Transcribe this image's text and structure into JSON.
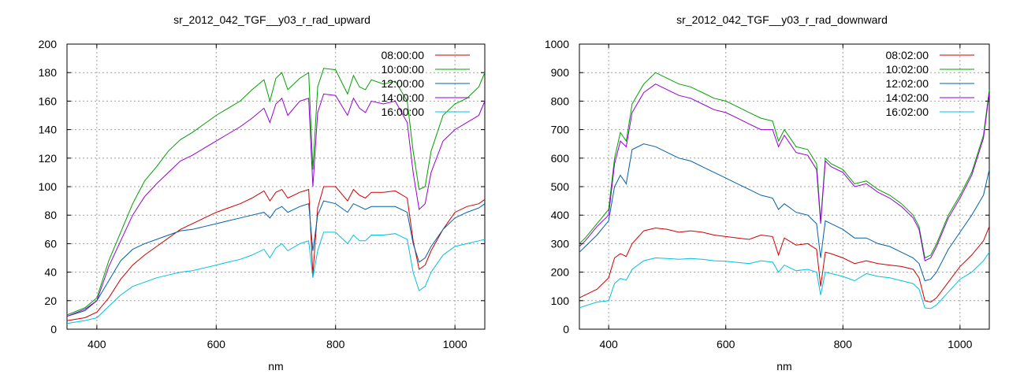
{
  "chart_data": [
    {
      "type": "line",
      "title": "sr_2012_042_TGF__y03_r_rad_upward",
      "xlabel": "nm",
      "ylabel": "",
      "xlim": [
        350,
        1050
      ],
      "ylim": [
        0,
        200
      ],
      "xticks": [
        400,
        600,
        800,
        1000
      ],
      "yticks": [
        0,
        20,
        40,
        60,
        80,
        100,
        120,
        140,
        160,
        180,
        200
      ],
      "grid": true,
      "legend_position": "top-right",
      "x": [
        350,
        380,
        400,
        420,
        440,
        460,
        480,
        500,
        520,
        540,
        560,
        580,
        600,
        620,
        640,
        660,
        680,
        690,
        700,
        710,
        720,
        740,
        755,
        762,
        770,
        780,
        800,
        820,
        830,
        840,
        850,
        860,
        880,
        900,
        920,
        930,
        940,
        950,
        960,
        980,
        1000,
        1020,
        1040,
        1050
      ],
      "series": [
        {
          "name": "08:00:00",
          "color": "#cc0000",
          "values": [
            6,
            8,
            12,
            22,
            35,
            45,
            52,
            58,
            64,
            70,
            74,
            78,
            82,
            85,
            88,
            92,
            97,
            90,
            96,
            98,
            92,
            96,
            98,
            38,
            85,
            100,
            100,
            90,
            98,
            94,
            92,
            96,
            96,
            97,
            92,
            62,
            42,
            45,
            55,
            70,
            82,
            86,
            88,
            91
          ]
        },
        {
          "name": "10:00:00",
          "color": "#00a000",
          "values": [
            10,
            15,
            22,
            48,
            68,
            88,
            104,
            114,
            125,
            133,
            138,
            144,
            150,
            155,
            160,
            168,
            175,
            160,
            176,
            180,
            168,
            176,
            180,
            112,
            170,
            183,
            182,
            165,
            178,
            170,
            168,
            175,
            172,
            174,
            160,
            125,
            98,
            100,
            125,
            150,
            158,
            162,
            170,
            180
          ]
        },
        {
          "name": "12:00:00",
          "color": "#0060ad",
          "values": [
            9,
            13,
            20,
            34,
            48,
            56,
            60,
            63,
            66,
            69,
            70,
            72,
            74,
            76,
            78,
            80,
            82,
            78,
            84,
            86,
            82,
            86,
            88,
            55,
            80,
            90,
            88,
            82,
            88,
            86,
            84,
            86,
            86,
            86,
            82,
            60,
            47,
            50,
            58,
            70,
            78,
            82,
            85,
            88
          ]
        },
        {
          "name": "14:00:00",
          "color": "#9400d3",
          "values": [
            9,
            14,
            20,
            44,
            62,
            80,
            93,
            102,
            110,
            118,
            122,
            127,
            132,
            137,
            142,
            148,
            155,
            145,
            158,
            162,
            150,
            160,
            162,
            100,
            152,
            165,
            164,
            150,
            162,
            155,
            152,
            160,
            158,
            160,
            145,
            110,
            84,
            88,
            110,
            132,
            140,
            145,
            150,
            160
          ]
        },
        {
          "name": "16:00:00",
          "color": "#00c0e0",
          "values": [
            4,
            6,
            8,
            16,
            24,
            30,
            33,
            36,
            38,
            40,
            41,
            43,
            45,
            47,
            49,
            52,
            56,
            50,
            57,
            60,
            55,
            60,
            62,
            36,
            55,
            68,
            68,
            60,
            66,
            62,
            62,
            66,
            66,
            67,
            63,
            40,
            27,
            30,
            40,
            52,
            58,
            60,
            62,
            63
          ]
        }
      ]
    },
    {
      "type": "line",
      "title": "sr_2012_042_TGF__y03_r_rad_downward",
      "xlabel": "nm",
      "ylabel": "",
      "xlim": [
        350,
        1050
      ],
      "ylim": [
        0,
        1000
      ],
      "xticks": [
        400,
        600,
        800,
        1000
      ],
      "yticks": [
        0,
        100,
        200,
        300,
        400,
        500,
        600,
        700,
        800,
        900,
        1000
      ],
      "grid": true,
      "legend_position": "top-right",
      "x": [
        350,
        360,
        380,
        400,
        410,
        420,
        430,
        440,
        460,
        480,
        500,
        520,
        540,
        560,
        580,
        600,
        620,
        640,
        660,
        680,
        690,
        700,
        720,
        740,
        755,
        762,
        770,
        780,
        800,
        820,
        840,
        860,
        880,
        900,
        920,
        930,
        940,
        950,
        960,
        980,
        1000,
        1020,
        1040,
        1050
      ],
      "series": [
        {
          "name": "08:02:00",
          "color": "#cc0000",
          "values": [
            110,
            120,
            140,
            180,
            250,
            265,
            255,
            300,
            345,
            355,
            350,
            340,
            345,
            340,
            330,
            325,
            320,
            315,
            330,
            325,
            260,
            320,
            295,
            300,
            280,
            150,
            270,
            265,
            250,
            230,
            240,
            230,
            225,
            220,
            210,
            180,
            100,
            95,
            110,
            165,
            220,
            260,
            310,
            360
          ]
        },
        {
          "name": "10:02:00",
          "color": "#00a000",
          "values": [
            300,
            320,
            370,
            420,
            600,
            690,
            660,
            790,
            860,
            900,
            880,
            860,
            850,
            830,
            810,
            800,
            780,
            760,
            740,
            730,
            660,
            700,
            640,
            630,
            580,
            380,
            600,
            580,
            560,
            510,
            520,
            490,
            470,
            440,
            400,
            360,
            250,
            260,
            300,
            400,
            470,
            550,
            680,
            840
          ]
        },
        {
          "name": "12:02:00",
          "color": "#0060ad",
          "values": [
            270,
            290,
            330,
            380,
            500,
            540,
            510,
            630,
            650,
            640,
            620,
            600,
            590,
            570,
            550,
            530,
            510,
            490,
            470,
            460,
            420,
            440,
            410,
            400,
            370,
            250,
            380,
            370,
            350,
            320,
            320,
            300,
            290,
            270,
            250,
            230,
            170,
            175,
            200,
            280,
            340,
            400,
            470,
            560
          ]
        },
        {
          "name": "14:02:00",
          "color": "#9400d3",
          "values": [
            290,
            310,
            360,
            400,
            580,
            660,
            640,
            760,
            830,
            860,
            840,
            820,
            810,
            790,
            770,
            760,
            740,
            720,
            700,
            700,
            640,
            680,
            620,
            610,
            560,
            370,
            590,
            570,
            550,
            500,
            510,
            480,
            460,
            430,
            390,
            350,
            240,
            250,
            290,
            390,
            460,
            540,
            670,
            830
          ]
        },
        {
          "name": "16:02:00",
          "color": "#00c0e0",
          "values": [
            75,
            82,
            95,
            100,
            160,
            178,
            172,
            210,
            240,
            250,
            248,
            245,
            248,
            245,
            240,
            238,
            234,
            230,
            240,
            235,
            200,
            225,
            205,
            210,
            200,
            120,
            200,
            195,
            185,
            170,
            195,
            185,
            180,
            170,
            160,
            140,
            75,
            72,
            85,
            130,
            175,
            200,
            240,
            270
          ]
        }
      ]
    }
  ]
}
